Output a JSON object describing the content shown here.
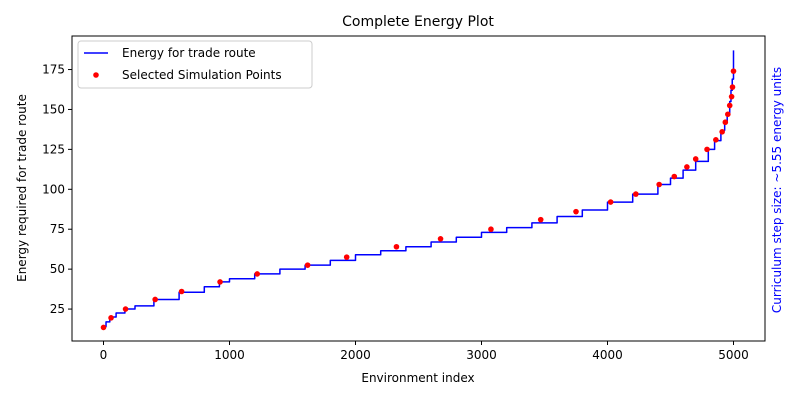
{
  "colors": {
    "line": "#0000ff",
    "points": "#ff0000",
    "side_note": "#0000ff",
    "background": "#ffffff",
    "axes": "#000000"
  },
  "chart_data": {
    "type": "line",
    "title": "Complete Energy Plot",
    "xlabel": "Environment index",
    "ylabel": "Energy required for trade route",
    "side_label": "Curriculum step size: ~5.55 energy units",
    "xlim": [
      -250,
      5250
    ],
    "ylim": [
      5,
      196
    ],
    "xticks": [
      0,
      1000,
      2000,
      3000,
      4000,
      5000
    ],
    "yticks": [
      25,
      50,
      75,
      100,
      125,
      150,
      175
    ],
    "grid": false,
    "legend_position": "top-left",
    "series": [
      {
        "name": "Energy for trade route",
        "kind": "line",
        "x": [
          0,
          20,
          50,
          100,
          170,
          250,
          400,
          600,
          800,
          920,
          1000,
          1200,
          1400,
          1600,
          1800,
          2000,
          2200,
          2400,
          2600,
          2800,
          3000,
          3200,
          3400,
          3600,
          3800,
          4000,
          4200,
          4400,
          4500,
          4600,
          4700,
          4800,
          4850,
          4900,
          4930,
          4950,
          4970,
          4980,
          4990,
          5000
        ],
        "y": [
          14,
          17,
          20,
          22.5,
          25,
          27,
          31,
          35.5,
          39,
          42,
          44,
          47,
          50,
          52.5,
          55.5,
          59,
          61.5,
          64,
          67,
          70,
          73,
          76,
          79,
          83,
          87,
          92,
          97,
          103,
          107,
          112,
          117.5,
          125,
          130.5,
          137,
          142,
          148,
          155,
          162,
          169,
          187
        ]
      },
      {
        "name": "Selected Simulation Points",
        "kind": "scatter",
        "x": [
          0,
          60,
          175,
          410,
          620,
          925,
          1220,
          1620,
          1930,
          2325,
          2675,
          3075,
          3470,
          3750,
          4025,
          4225,
          4410,
          4530,
          4630,
          4700,
          4790,
          4860,
          4910,
          4935,
          4955,
          4970,
          4985,
          4992,
          5000
        ],
        "y": [
          13.5,
          19.5,
          25,
          31,
          36,
          42,
          47,
          52.5,
          57.5,
          64,
          69,
          75,
          81,
          86,
          92,
          97,
          103,
          108,
          114,
          119,
          125,
          131,
          136,
          142,
          147,
          152.5,
          158,
          164,
          174
        ]
      }
    ]
  }
}
